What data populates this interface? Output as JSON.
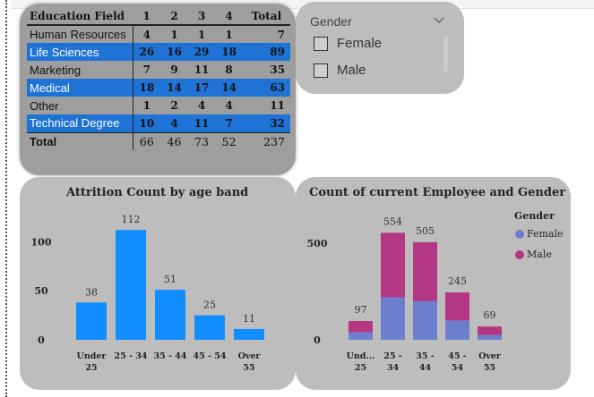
{
  "matrix": {
    "header": [
      "Education Field",
      "1",
      "2",
      "3",
      "4",
      "Total"
    ],
    "rows": [
      {
        "field": "Human Resources",
        "v1": "4",
        "v2": "1",
        "v3": "1",
        "v4": "1",
        "total": "7",
        "highlight": false
      },
      {
        "field": "Life Sciences",
        "v1": "26",
        "v2": "16",
        "v3": "29",
        "v4": "18",
        "total": "89",
        "highlight": true
      },
      {
        "field": "Marketing",
        "v1": "7",
        "v2": "9",
        "v3": "11",
        "v4": "8",
        "total": "35",
        "highlight": false
      },
      {
        "field": "Medical",
        "v1": "18",
        "v2": "14",
        "v3": "17",
        "v4": "14",
        "total": "63",
        "highlight": true
      },
      {
        "field": "Other",
        "v1": "1",
        "v2": "2",
        "v3": "4",
        "v4": "4",
        "total": "11",
        "highlight": false
      },
      {
        "field": "Technical Degree",
        "v1": "10",
        "v2": "4",
        "v3": "11",
        "v4": "7",
        "total": "32",
        "highlight": true
      }
    ],
    "total_row": {
      "field": "Total",
      "v1": "66",
      "v2": "46",
      "v3": "73",
      "v4": "52",
      "total": "237"
    }
  },
  "slicer": {
    "title": "Gender",
    "icon": "chevron-down-icon",
    "options": [
      {
        "label": "Female",
        "checked": false
      },
      {
        "label": "Male",
        "checked": false
      }
    ]
  },
  "colors": {
    "highlight_row": "#1f73d6",
    "bar_blue": "#118dff",
    "female": "#6b7fce",
    "male": "#b33782"
  },
  "chart_data": [
    {
      "type": "bar",
      "title": "Attrition Count by age band",
      "categories": [
        "Under 25",
        "25 - 34",
        "35 - 44",
        "45 - 54",
        "Over 55"
      ],
      "values": [
        38,
        112,
        51,
        25,
        11
      ],
      "yticks": [
        "0",
        "50",
        "100"
      ],
      "ylim": [
        0,
        125
      ],
      "xlabel": "",
      "ylabel": "",
      "grid": false,
      "legend": "none"
    },
    {
      "type": "bar",
      "stacked": true,
      "title": "Count of current Employee and Gender",
      "categories": [
        "Under 25",
        "25 - 34",
        "35 - 44",
        "45 - 54",
        "Over 55"
      ],
      "tick_labels": [
        [
          "Und...",
          "25"
        ],
        [
          "25 -",
          "34"
        ],
        [
          "35 -",
          "44"
        ],
        [
          "45 -",
          "54"
        ],
        [
          "Over",
          "55"
        ]
      ],
      "series": [
        {
          "name": "Female",
          "values": [
            38,
            220,
            200,
            100,
            25
          ]
        },
        {
          "name": "Male",
          "values": [
            59,
            334,
            305,
            145,
            44
          ]
        }
      ],
      "totals": [
        97,
        554,
        505,
        245,
        69
      ],
      "yticks": [
        "0",
        "500"
      ],
      "ylim": [
        0,
        620
      ],
      "legend_title": "Gender",
      "legend": "top-right",
      "grid": false
    }
  ]
}
